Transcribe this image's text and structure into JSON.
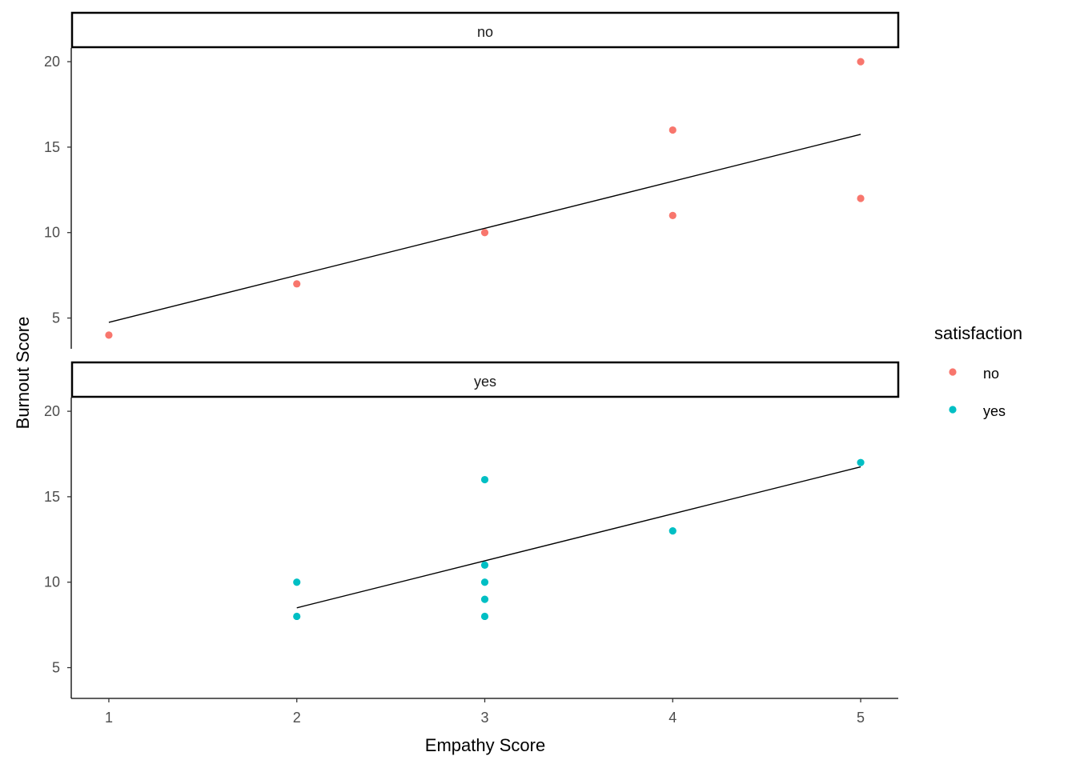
{
  "chart_data": {
    "type": "scatter",
    "title": "",
    "xlabel": "Empathy Score",
    "ylabel": "Burnout Score",
    "xlim": [
      0.8,
      5.2
    ],
    "ylim": [
      3.2,
      20.8
    ],
    "x_ticks": [
      1,
      2,
      3,
      4,
      5
    ],
    "y_ticks": [
      5,
      10,
      15,
      20
    ],
    "grid": false,
    "legend": {
      "title": "satisfaction",
      "position": "right",
      "entries": [
        {
          "label": "no",
          "color": "#F8766D"
        },
        {
          "label": "yes",
          "color": "#00BFC4"
        }
      ]
    },
    "panels": [
      {
        "strip": "no",
        "color": "#F8766D",
        "points": [
          {
            "x": 1,
            "y": 4
          },
          {
            "x": 2,
            "y": 7
          },
          {
            "x": 3,
            "y": 10
          },
          {
            "x": 4,
            "y": 16
          },
          {
            "x": 4,
            "y": 11
          },
          {
            "x": 5,
            "y": 20
          },
          {
            "x": 5,
            "y": 12
          }
        ],
        "fit_line": [
          {
            "x": 1,
            "y": 4.75
          },
          {
            "x": 5,
            "y": 15.75
          }
        ]
      },
      {
        "strip": "yes",
        "color": "#00BFC4",
        "points": [
          {
            "x": 2,
            "y": 10
          },
          {
            "x": 2,
            "y": 8
          },
          {
            "x": 3,
            "y": 16
          },
          {
            "x": 3,
            "y": 11
          },
          {
            "x": 3,
            "y": 10
          },
          {
            "x": 3,
            "y": 9
          },
          {
            "x": 3,
            "y": 8
          },
          {
            "x": 4,
            "y": 13
          },
          {
            "x": 5,
            "y": 17
          }
        ],
        "fit_line": [
          {
            "x": 2,
            "y": 8.5
          },
          {
            "x": 5,
            "y": 16.75
          }
        ]
      }
    ]
  }
}
